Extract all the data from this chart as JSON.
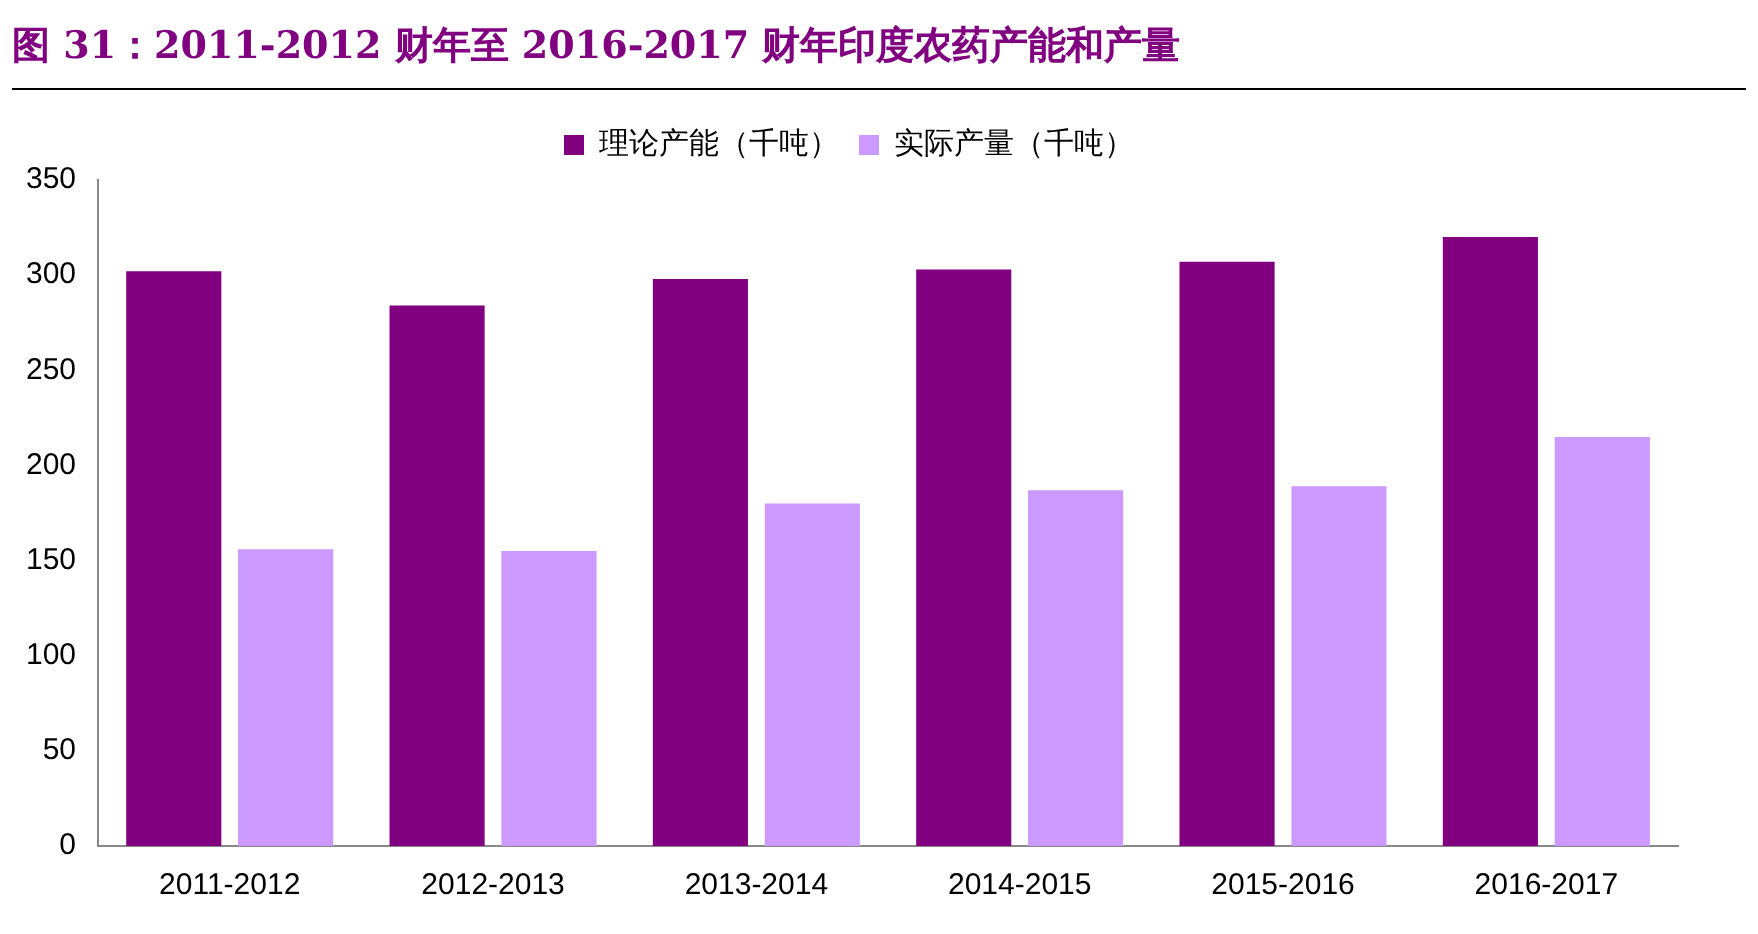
{
  "chart_data": {
    "type": "bar",
    "title": "图 31：2011-2012 财年至 2016-2017 财年印度农药产能和产量",
    "categories": [
      "2011-2012",
      "2012-2013",
      "2013-2014",
      "2014-2015",
      "2015-2016",
      "2016-2017"
    ],
    "series": [
      {
        "name": "理论产能（千吨）",
        "color": "#800080",
        "values": [
          302,
          284,
          298,
          303,
          307,
          320
        ]
      },
      {
        "name": "实际产量（千吨）",
        "color": "#cc99ff",
        "values": [
          156,
          155,
          180,
          187,
          189,
          215
        ]
      }
    ],
    "ylim": [
      0,
      350
    ],
    "yticks": [
      0,
      50,
      100,
      150,
      200,
      250,
      300,
      350
    ],
    "grid": false,
    "legend": "top"
  }
}
